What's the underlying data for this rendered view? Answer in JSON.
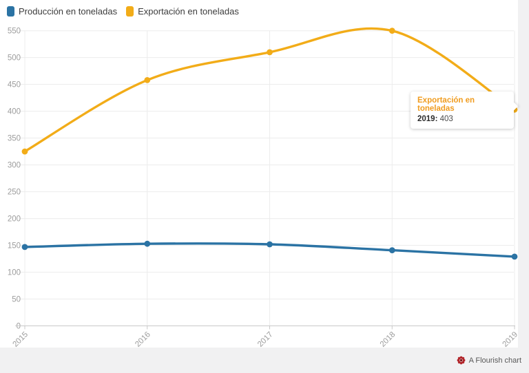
{
  "legend": {
    "items": [
      {
        "label": "Producción en toneladas",
        "color": "#2b73a4"
      },
      {
        "label": "Exportación en toneladas",
        "color": "#f2ac18"
      }
    ]
  },
  "tooltip": {
    "title": "Exportación en toneladas",
    "title_color": "#f09c1f",
    "year_label": "2019:",
    "value": "403"
  },
  "footer": {
    "credit": "A Flourish chart",
    "flower_color": "#b2252a"
  },
  "chart_data": {
    "type": "line",
    "x": [
      "2015",
      "2016",
      "2017",
      "2018",
      "2019"
    ],
    "series": [
      {
        "name": "Producción en toneladas",
        "color": "#2b73a4",
        "values": [
          147,
          153,
          152,
          141,
          129
        ]
      },
      {
        "name": "Exportación en toneladas",
        "color": "#f2ac18",
        "values": [
          325,
          458,
          510,
          550,
          403
        ]
      }
    ],
    "title": "",
    "xlabel": "",
    "ylabel": "",
    "ylim": [
      0,
      550
    ],
    "y_tick_step": 50,
    "grid": true,
    "legend_position": "top-left",
    "curve": "smooth"
  }
}
